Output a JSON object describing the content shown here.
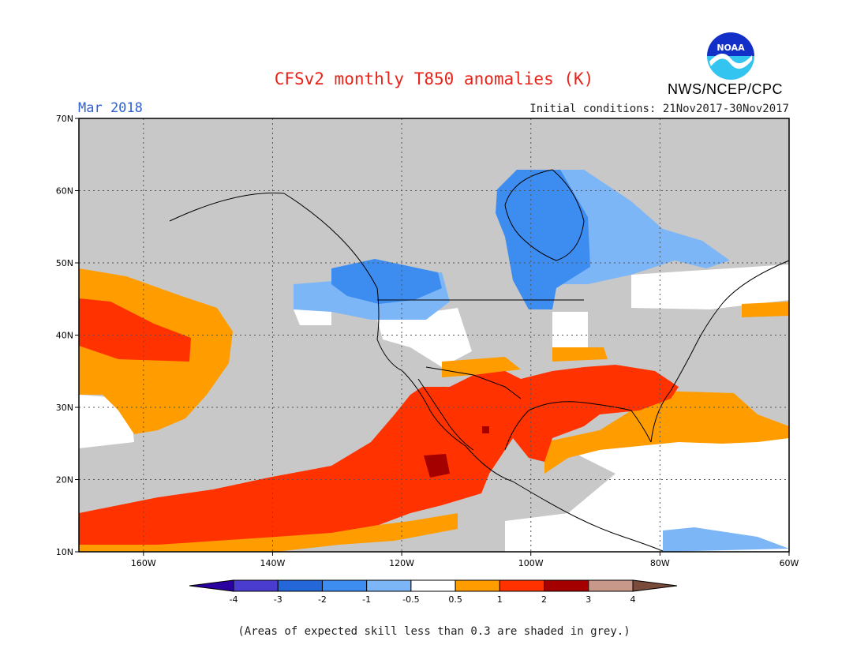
{
  "header": {
    "title": "CFSv2 monthly T850 anomalies (K)",
    "month": "Mar 2018",
    "initial_conditions": "Initial conditions: 21Nov2017-30Nov2017",
    "agency": "NWS/NCEP/CPC",
    "logo_text": "NOAA"
  },
  "map": {
    "lat_labels": [
      "70N",
      "60N",
      "50N",
      "40N",
      "30N",
      "20N",
      "10N"
    ],
    "lon_labels": [
      "160W",
      "140W",
      "120W",
      "100W",
      "80W",
      "60W"
    ],
    "lat_range": [
      10,
      70
    ],
    "lon_range": [
      -170,
      -60
    ],
    "skill_mask_color": "#c8c8c8"
  },
  "colorbar": {
    "labels": [
      "-4",
      "-3",
      "-2",
      "-1",
      "-0.5",
      "0.5",
      "1",
      "2",
      "3",
      "4"
    ],
    "colors": [
      "#2b00a0",
      "#4a3ccf",
      "#2367d8",
      "#3d8cf0",
      "#7db6f6",
      "#ffffff",
      "#ff9c00",
      "#ff3200",
      "#a50000",
      "#c8998a",
      "#7a4a3a"
    ]
  },
  "footnote": "(Areas of expected skill less than 0.3 are shaded in grey.)"
}
